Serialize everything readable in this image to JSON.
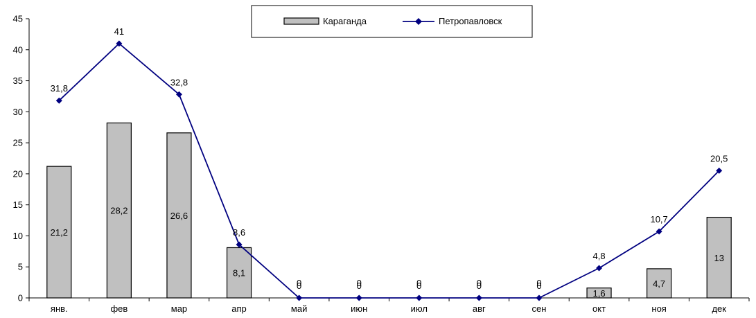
{
  "chart_data": {
    "type": "bar",
    "categories": [
      "янв.",
      "фев",
      "мар",
      "апр",
      "май",
      "июн",
      "июл",
      "авг",
      "сен",
      "окт",
      "ноя",
      "дек"
    ],
    "series": [
      {
        "name": "Караганда",
        "type": "bar",
        "color": "#c0c0c0",
        "values": [
          21.2,
          28.2,
          26.6,
          8.1,
          0,
          0,
          0,
          0,
          0,
          1.6,
          4.7,
          13
        ],
        "labels": [
          "21,2",
          "28,2",
          "26,6",
          "8,1",
          "0",
          "0",
          "0",
          "0",
          "0",
          "1,6",
          "4,7",
          "13"
        ]
      },
      {
        "name": "Петропавловск",
        "type": "line",
        "color": "#000080",
        "values": [
          31.8,
          41,
          32.8,
          8.6,
          0,
          0,
          0,
          0,
          0,
          4.8,
          10.7,
          20.5
        ],
        "labels": [
          "31,8",
          "41",
          "32,8",
          "8,6",
          "0",
          "0",
          "0",
          "0",
          "0",
          "4,8",
          "10,7",
          "20,5"
        ]
      }
    ],
    "ylim": [
      0,
      45
    ],
    "yticks": [
      0,
      5,
      10,
      15,
      20,
      25,
      30,
      35,
      40,
      45
    ],
    "legend_position": "top-center",
    "grid": false
  }
}
